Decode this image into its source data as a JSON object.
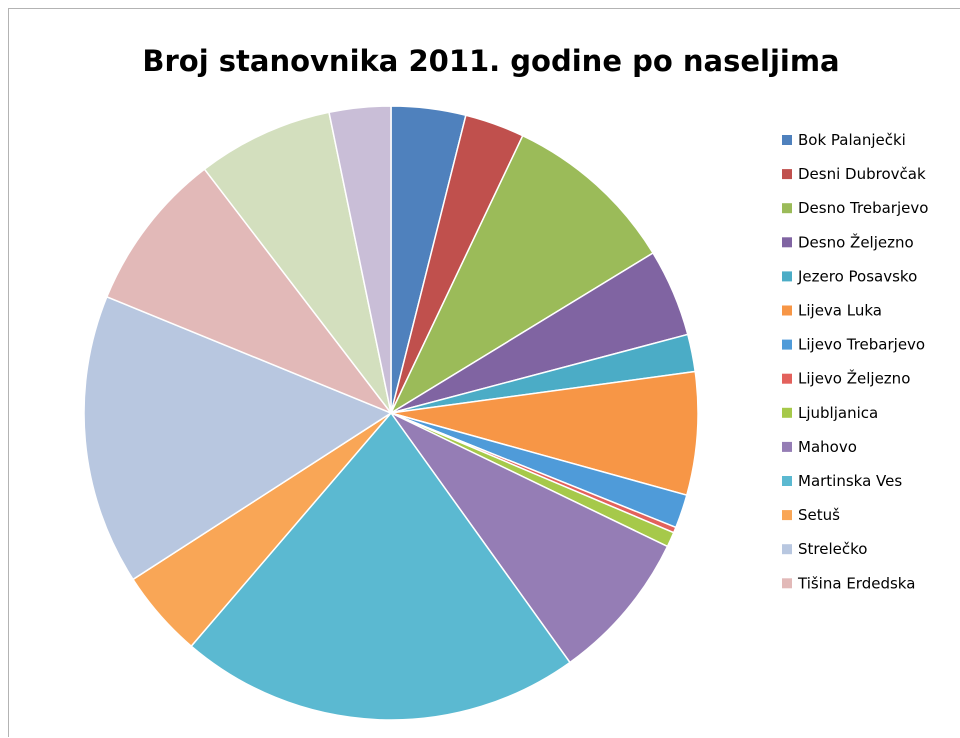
{
  "chart_data": {
    "type": "pie",
    "title": "Broj stanovnika 2011. godine po naseljima",
    "legend_position": "right",
    "start_angle": "12 o'clock, clockwise",
    "slices": [
      {
        "label": "Bok Palanječki",
        "value": 4.0,
        "color": "#4F81BD"
      },
      {
        "label": "Desni Dubrovčak",
        "value": 3.2,
        "color": "#C0504D"
      },
      {
        "label": "Desno Trebarjevo",
        "value": 9.4,
        "color": "#9BBB59"
      },
      {
        "label": "Desno Željezno",
        "value": 4.7,
        "color": "#8064A2"
      },
      {
        "label": "Jezero Posavsko",
        "value": 2.0,
        "color": "#4BACC6"
      },
      {
        "label": "Lijeva Luka",
        "value": 6.6,
        "color": "#F79646"
      },
      {
        "label": "Lijevo Trebarjevo",
        "value": 1.8,
        "color": "#4F9BD9"
      },
      {
        "label": "Lijevo Željezno",
        "value": 0.3,
        "color": "#E3615C"
      },
      {
        "label": "Ljubljanica",
        "value": 0.8,
        "color": "#A6C94A"
      },
      {
        "label": "Mahovo",
        "value": 8.1,
        "color": "#957DB5"
      },
      {
        "label": "Martinska Ves",
        "value": 21.6,
        "color": "#5BB9D1"
      },
      {
        "label": "Setuš",
        "value": 4.7,
        "color": "#F9A656"
      },
      {
        "label": "Strelečko",
        "value": 15.6,
        "color": "#B8C7E0"
      },
      {
        "label": "Tišina Erdedska",
        "value": 8.6,
        "color": "#E2B9B8"
      },
      {
        "label": "",
        "value": 7.3,
        "color": "#D3DFBE"
      },
      {
        "label": "",
        "value": 3.3,
        "color": "#C9BED7"
      }
    ]
  }
}
